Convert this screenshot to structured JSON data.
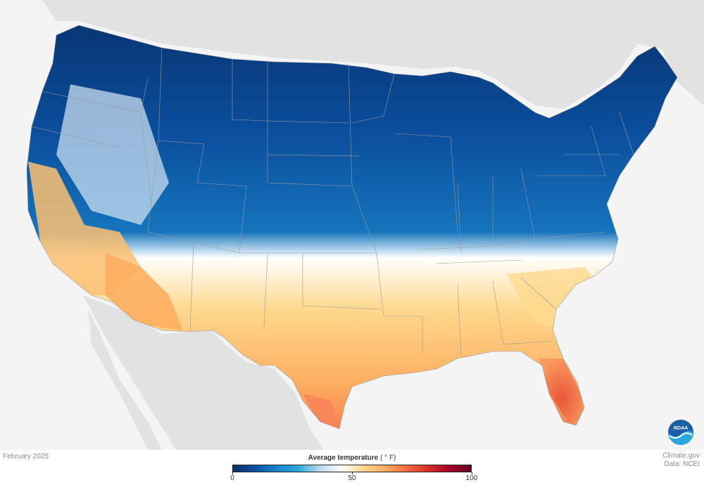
{
  "map": {
    "legend": {
      "title": "Average temperature",
      "unit": "( ° F)",
      "min": 0,
      "max": 100,
      "ticks": [
        "0",
        "50",
        "100"
      ],
      "colors": [
        "#08306b",
        "#0b4f9e",
        "#1a83c8",
        "#2aa8de",
        "#bcd9ea",
        "#ffffff",
        "#fed98e",
        "#fdae61",
        "#f46d43",
        "#d73027",
        "#a50026",
        "#67001f"
      ]
    },
    "date_label": "February 2025",
    "credit_line1": "Climate.gov",
    "credit_line2": "Data: NCEI",
    "logo_text": "NOAA"
  },
  "colors": {
    "background": "#f4f4f4",
    "land_outside": "#e2e2e2",
    "borders": "#9a9a9a"
  }
}
